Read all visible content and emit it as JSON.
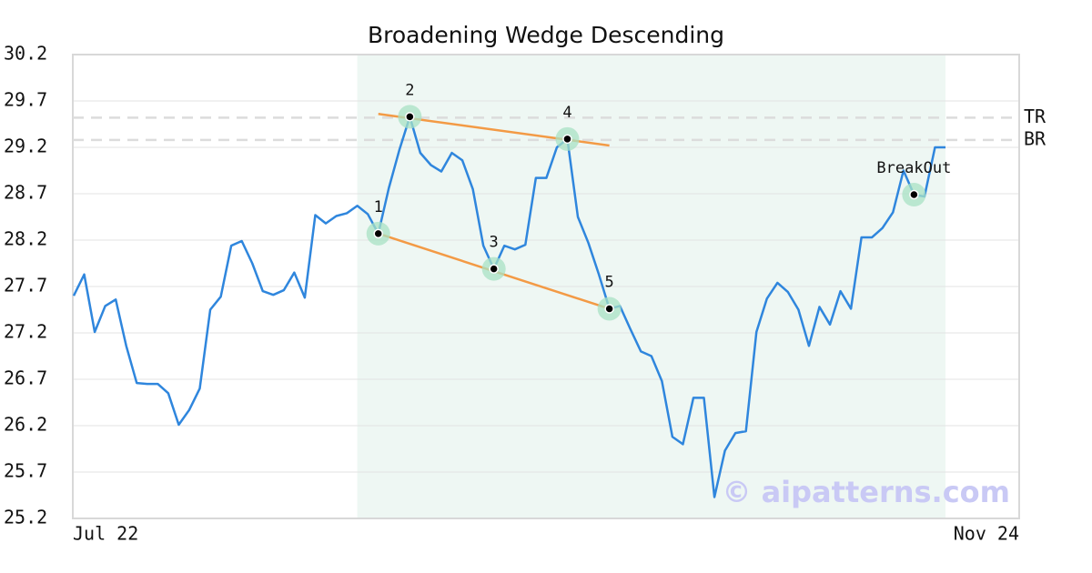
{
  "chart_data": {
    "type": "line",
    "title": "Broadening Wedge Descending",
    "categories": [
      "Jul 22",
      null,
      null,
      null,
      null,
      null,
      null,
      null,
      null,
      null,
      null,
      null,
      null,
      null,
      null,
      null,
      null,
      null,
      null,
      null,
      null,
      null,
      null,
      null,
      null,
      null,
      null,
      null,
      null,
      null,
      null,
      null,
      null,
      null,
      null,
      null,
      null,
      null,
      null,
      null,
      null,
      null,
      null,
      null,
      null,
      null,
      null,
      null,
      null,
      null,
      null,
      null,
      null,
      null,
      null,
      null,
      null,
      null,
      null,
      null,
      null,
      null,
      null,
      null,
      null,
      null,
      null,
      null,
      null,
      null,
      null,
      null,
      null,
      null,
      null,
      null,
      null,
      null,
      null,
      null,
      null,
      null,
      null,
      "Nov 24"
    ],
    "series": [
      {
        "color": "#2f86dd",
        "values": [
          27.6,
          27.83,
          27.21,
          27.49,
          27.56,
          27.06,
          26.66,
          26.65,
          26.65,
          26.55,
          26.21,
          26.37,
          26.6,
          27.45,
          27.59,
          28.14,
          28.19,
          27.95,
          27.65,
          27.61,
          27.66,
          27.85,
          27.58,
          28.47,
          28.38,
          28.46,
          28.49,
          28.57,
          28.48,
          28.27,
          28.76,
          29.17,
          29.53,
          29.14,
          29.01,
          28.94,
          29.14,
          29.06,
          28.75,
          28.14,
          27.89,
          28.14,
          28.1,
          28.15,
          28.87,
          28.87,
          29.2,
          29.29,
          28.45,
          28.17,
          27.83,
          27.46,
          27.49,
          27.24,
          27.0,
          26.95,
          26.68,
          26.08,
          26.0,
          26.5,
          26.5,
          25.43,
          25.93,
          26.12,
          26.14,
          27.21,
          27.57,
          27.74,
          27.64,
          27.45,
          27.06,
          27.48,
          27.29,
          27.65,
          27.46,
          28.23,
          28.23,
          28.33,
          28.5,
          28.95,
          28.69,
          28.67,
          29.2,
          29.2
        ]
      }
    ],
    "ylim": [
      25.2,
      30.2
    ],
    "yticks": [
      25.2,
      25.7,
      26.2,
      26.7,
      27.2,
      27.7,
      28.2,
      28.7,
      29.2,
      29.7,
      30.2
    ],
    "grid": true,
    "highlight": {
      "from": 27,
      "to": 83,
      "color": "#eef7f3"
    },
    "levels": [
      {
        "label": "TR",
        "value": 29.52
      },
      {
        "label": "BR",
        "value": 29.28
      }
    ],
    "trendlines": [
      {
        "x": [
          29,
          51
        ],
        "values": [
          29.56,
          29.22
        ],
        "color": "#f39a45"
      },
      {
        "x": [
          29,
          51
        ],
        "values": [
          28.27,
          27.46
        ],
        "color": "#f39a45"
      }
    ],
    "annotations": [
      {
        "label": "1",
        "index": 29,
        "value": 28.27
      },
      {
        "label": "2",
        "index": 32,
        "value": 29.53
      },
      {
        "label": "3",
        "index": 40,
        "value": 27.89
      },
      {
        "label": "4",
        "index": 47,
        "value": 29.29
      },
      {
        "label": "5",
        "index": 51,
        "value": 27.46
      },
      {
        "label": "BreakOut",
        "index": 80,
        "value": 28.69
      }
    ],
    "watermark": "© aipatterns.com"
  }
}
